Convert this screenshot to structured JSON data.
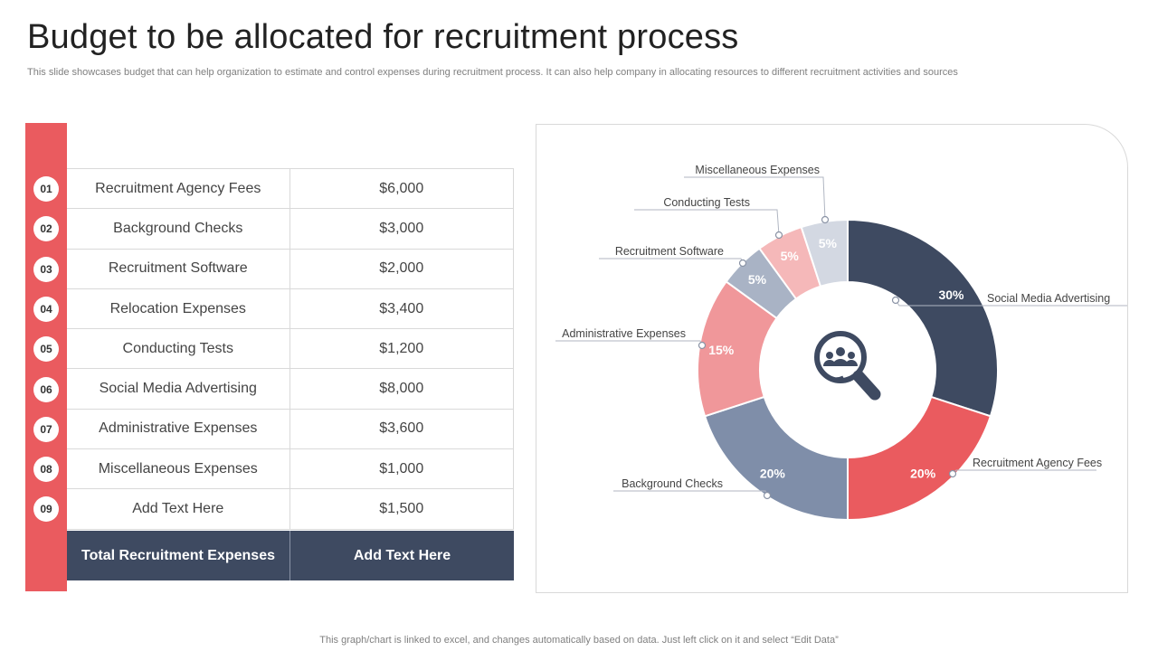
{
  "title": "Budget to be allocated for recruitment process",
  "subtitle": "This slide showcases budget that can help organization to estimate and control expenses during recruitment process. It can also help company in allocating resources to different recruitment activities and sources",
  "table": {
    "rows": [
      {
        "num": "01",
        "item": "Recruitment Agency Fees",
        "amount": "$6,000"
      },
      {
        "num": "02",
        "item": "Background Checks",
        "amount": "$3,000"
      },
      {
        "num": "03",
        "item": "Recruitment Software",
        "amount": "$2,000"
      },
      {
        "num": "04",
        "item": "Relocation Expenses",
        "amount": "$3,400"
      },
      {
        "num": "05",
        "item": "Conducting Tests",
        "amount": "$1,200"
      },
      {
        "num": "06",
        "item": "Social Media Advertising",
        "amount": "$8,000"
      },
      {
        "num": "07",
        "item": "Administrative Expenses",
        "amount": "$3,600"
      },
      {
        "num": "08",
        "item": "Miscellaneous Expenses",
        "amount": "$1,000"
      },
      {
        "num": "09",
        "item": "Add Text Here",
        "amount": "$1,500"
      }
    ],
    "total_label": "Total Recruitment Expenses",
    "total_value": "Add Text Here"
  },
  "chart_data": {
    "type": "donut",
    "slices": [
      {
        "label": "Social Media Advertising",
        "value": 30,
        "display": "30%",
        "color": "#3e4a61"
      },
      {
        "label": "Recruitment Agency Fees",
        "value": 20,
        "display": "20%",
        "color": "#ea5b5f"
      },
      {
        "label": "Background Checks",
        "value": 20,
        "display": "20%",
        "color": "#7f8ea9"
      },
      {
        "label": "Administrative Expenses",
        "value": 15,
        "display": "15%",
        "color": "#f0979a"
      },
      {
        "label": "Recruitment Software",
        "value": 5,
        "display": "5%",
        "color": "#a9b3c5"
      },
      {
        "label": "Conducting Tests",
        "value": 5,
        "display": "5%",
        "color": "#f5b8b9"
      },
      {
        "label": "Miscellaneous Expenses",
        "value": 5,
        "display": "5%",
        "color": "#d3d8e2"
      }
    ],
    "center_icon": "search-people-icon"
  },
  "footer": "This graph/chart is linked to excel,  and changes automatically based on data. Just left click on it and select “Edit Data”"
}
